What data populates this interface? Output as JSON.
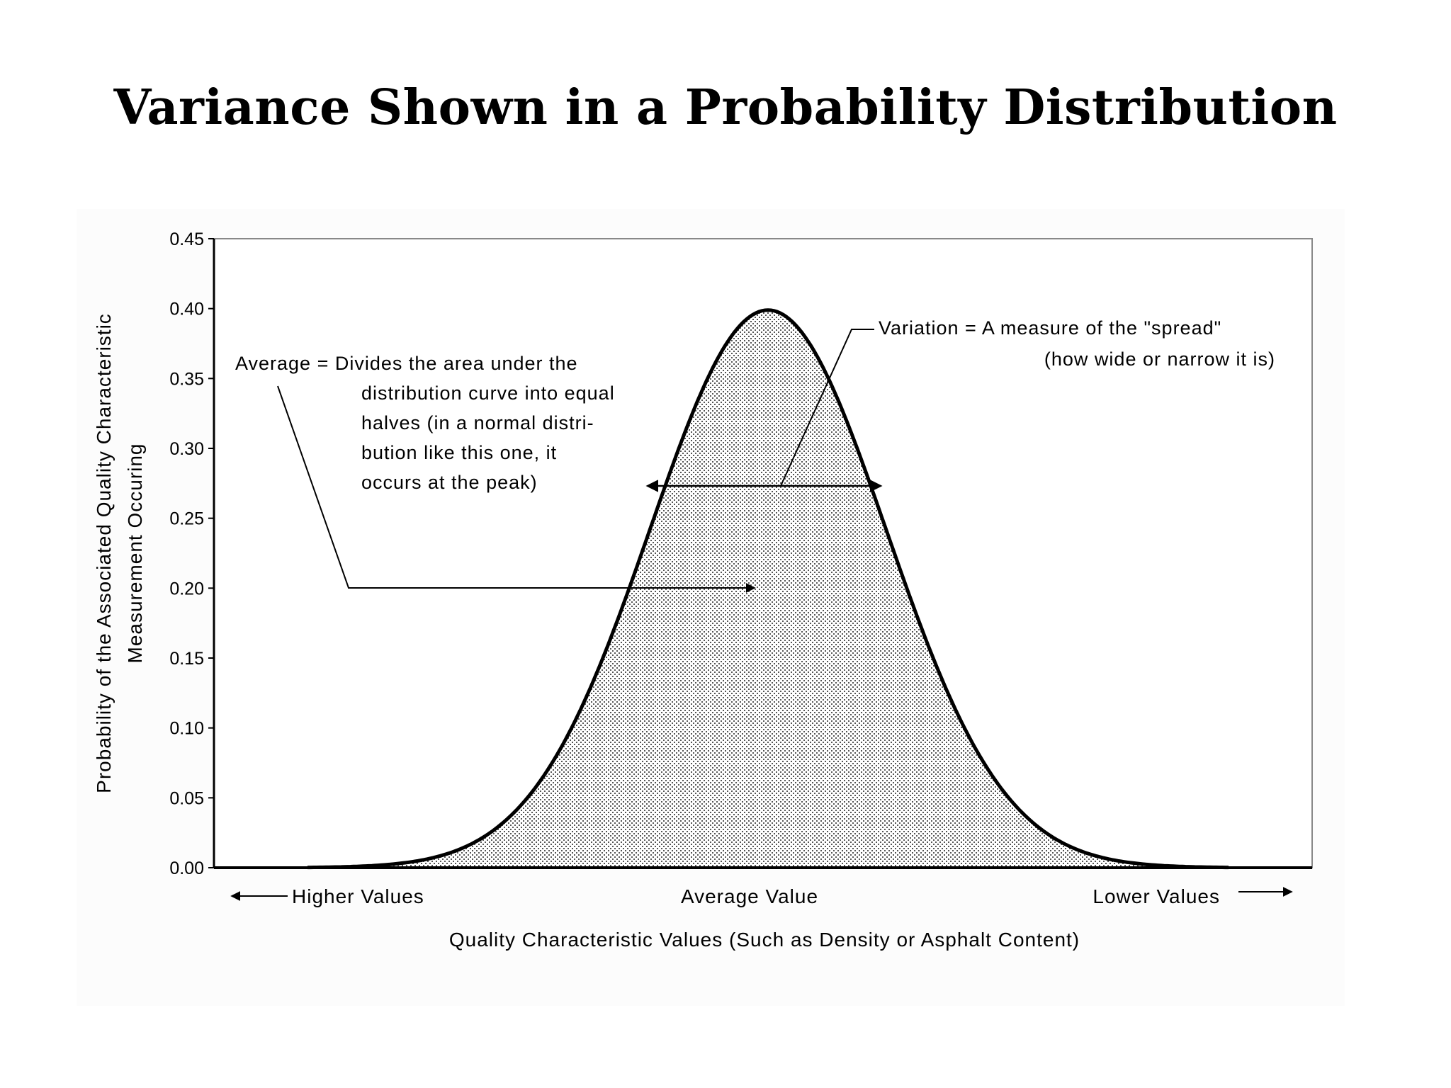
{
  "title": "Variance Shown in a Probability Distribution",
  "chart_data": {
    "type": "area",
    "distribution": "normal",
    "mean": 0,
    "sd": 1,
    "x_range": [
      -3.9,
      3.9
    ],
    "ylim": [
      0,
      0.45
    ],
    "y_ticks": [
      "0.00",
      "0.05",
      "0.10",
      "0.15",
      "0.20",
      "0.25",
      "0.30",
      "0.35",
      "0.40",
      "0.45"
    ],
    "peak_value": 0.4,
    "ylabel": [
      "Probability of the Associated Quality Characteristic",
      "Measurement Occuring"
    ],
    "xlabel": "Quality Characteristic Values (Such as Density or Asphalt Content)",
    "x_categories": {
      "left": "Higher Values",
      "center": "Average Value",
      "right": "Lower Values"
    },
    "fill": "dotted",
    "grid": false,
    "annotations": {
      "average": [
        "Average = Divides the area under the",
        "distribution curve into equal",
        "halves (in a normal distri-",
        "bution like this one, it",
        "occurs at the peak)"
      ],
      "variation": [
        "Variation = A measure of the \"spread\"",
        "(how wide or narrow it is)"
      ]
    }
  }
}
